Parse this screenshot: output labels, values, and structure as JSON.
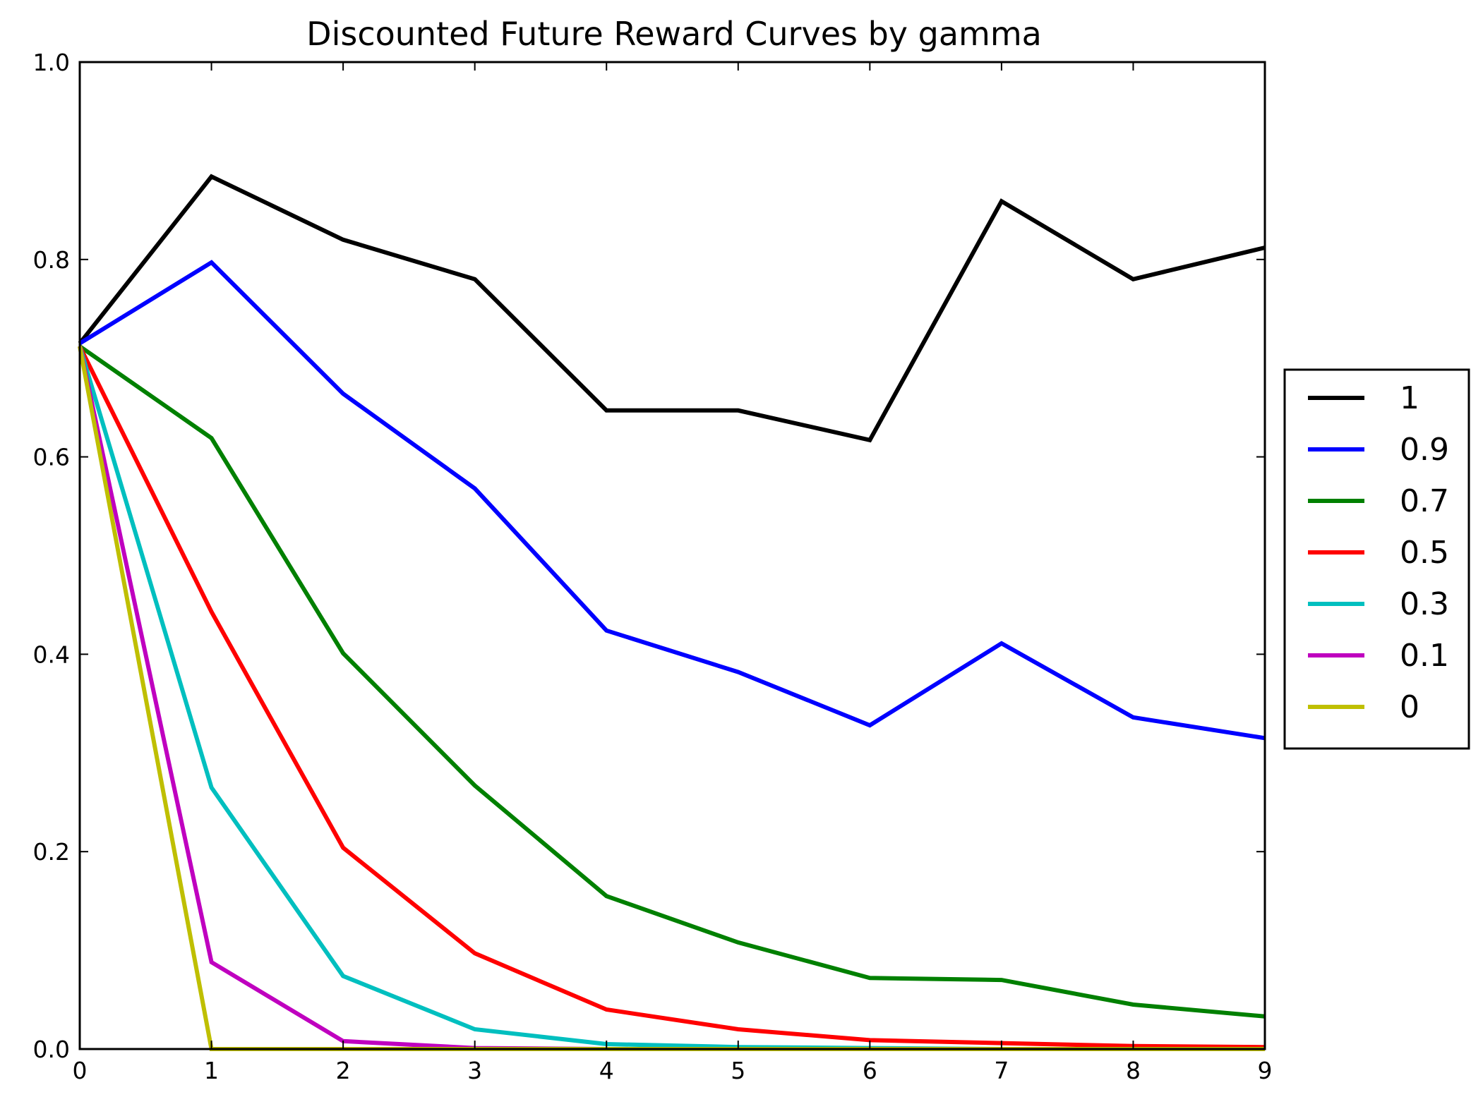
{
  "chart_data": {
    "type": "line",
    "title": "Discounted Future Reward Curves by gamma",
    "xlabel": "",
    "ylabel": "",
    "xlim": [
      0,
      9
    ],
    "ylim": [
      0.0,
      1.0
    ],
    "x": [
      0,
      1,
      2,
      3,
      4,
      5,
      6,
      7,
      8,
      9
    ],
    "x_tick_labels": [
      "0",
      "1",
      "2",
      "3",
      "4",
      "5",
      "6",
      "7",
      "8",
      "9"
    ],
    "y_ticks": [
      0.0,
      0.2,
      0.4,
      0.6,
      0.8,
      1.0
    ],
    "y_tick_labels": [
      "0.0",
      "0.2",
      "0.4",
      "0.6",
      "0.8",
      "1.0"
    ],
    "grid": false,
    "legend_placement": "outside-right",
    "series": [
      {
        "name": "1",
        "color": "#000000",
        "values": [
          0.715,
          0.884,
          0.82,
          0.78,
          0.647,
          0.647,
          0.617,
          0.859,
          0.78,
          0.812
        ]
      },
      {
        "name": "0.9",
        "color": "#0000ff",
        "values": [
          0.715,
          0.797,
          0.664,
          0.568,
          0.424,
          0.382,
          0.328,
          0.411,
          0.336,
          0.315
        ]
      },
      {
        "name": "0.7",
        "color": "#008000",
        "values": [
          0.712,
          0.619,
          0.401,
          0.267,
          0.155,
          0.108,
          0.072,
          0.07,
          0.045,
          0.033
        ]
      },
      {
        "name": "0.5",
        "color": "#ff0000",
        "values": [
          0.712,
          0.443,
          0.204,
          0.097,
          0.04,
          0.02,
          0.009,
          0.006,
          0.003,
          0.002
        ]
      },
      {
        "name": "0.3",
        "color": "#00bfbf",
        "values": [
          0.712,
          0.265,
          0.074,
          0.02,
          0.005,
          0.002,
          0.001,
          0.0,
          0.0,
          0.0
        ]
      },
      {
        "name": "0.1",
        "color": "#bf00bf",
        "values": [
          0.712,
          0.088,
          0.008,
          0.001,
          0.0,
          0.0,
          0.0,
          0.0,
          0.0,
          0.0
        ]
      },
      {
        "name": "0",
        "color": "#bfbf00",
        "values": [
          0.712,
          0.0,
          0.0,
          0.0,
          0.0,
          0.0,
          0.0,
          0.0,
          0.0,
          0.0
        ]
      }
    ]
  }
}
